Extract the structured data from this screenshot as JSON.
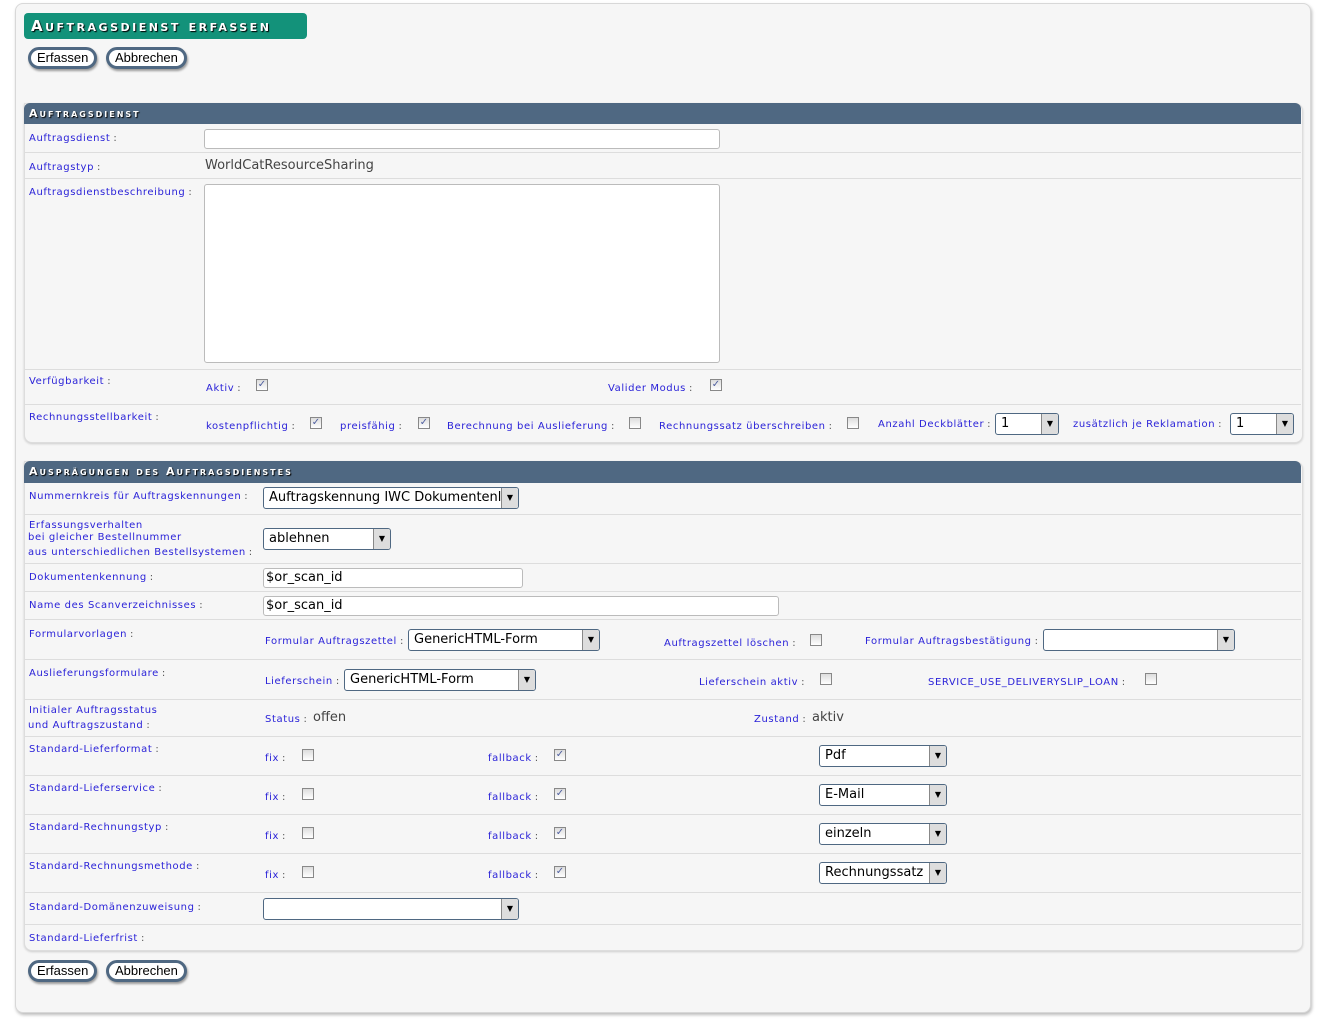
{
  "title": "Auftragsdienst erfassen",
  "buttons": {
    "submit": "Erfassen",
    "cancel": "Abbrechen"
  },
  "section1": {
    "header": "Auftragsdienst",
    "auftragsdienst": {
      "label": "Auftragsdienst",
      "value": ""
    },
    "auftragstyp": {
      "label": "Auftragstyp",
      "value": "WorldCatResourceSharing"
    },
    "beschreibung": {
      "label": "Auftragsdienstbeschreibung",
      "value": ""
    },
    "verfuegbarkeit": {
      "label": "Verfügbarkeit",
      "aktiv": {
        "label": "Aktiv",
        "checked": true
      },
      "valider_modus": {
        "label": "Valider Modus",
        "checked": true
      }
    },
    "rechnung": {
      "label": "Rechnungsstellbarkeit",
      "kostenpflichtig": {
        "label": "kostenpflichtig",
        "checked": true
      },
      "preisfaehig": {
        "label": "preisfähig",
        "checked": true
      },
      "berechnung": {
        "label": "Berechnung bei Auslieferung",
        "checked": false
      },
      "rechnungssatz": {
        "label": "Rechnungssatz überschreiben",
        "checked": false
      },
      "deckblaetter": {
        "label": "Anzahl Deckblätter",
        "value": "1"
      },
      "reklamation": {
        "label": "zusätzlich je Reklamation",
        "value": "1"
      }
    }
  },
  "section2": {
    "header": "Ausprägungen des Auftragsdienstes",
    "nummernkreis": {
      "label": "Nummernkreis für Auftragskennungen",
      "value": "Auftragskennung IWC Dokumentenl"
    },
    "erfassung": {
      "label1": "Erfassungsverhalten",
      "label2": "bei gleicher Bestellnummer",
      "label3": "aus unterschiedlichen Bestellsystemen",
      "value": "ablehnen"
    },
    "dokumentenkennung": {
      "label": "Dokumentenkennung",
      "value": "$or_scan_id"
    },
    "scanverzeichnis": {
      "label": "Name des Scanverzeichnisses",
      "value": "$or_scan_id"
    },
    "formularvorlagen": {
      "label": "Formularvorlagen",
      "auftragszettel": {
        "label": "Formular Auftragszettel",
        "value": "GenericHTML-Form"
      },
      "loeschen": {
        "label": "Auftragszettel löschen",
        "checked": false
      },
      "bestaetigung": {
        "label": "Formular Auftragsbestätigung",
        "value": ""
      }
    },
    "auslieferung": {
      "label": "Auslieferungsformulare",
      "lieferschein": {
        "label": "Lieferschein",
        "value": "GenericHTML-Form"
      },
      "aktiv": {
        "label": "Lieferschein aktiv",
        "checked": false
      },
      "loan": {
        "label": "SERVICE_USE_DELIVERYSLIP_LOAN",
        "checked": false
      }
    },
    "initial": {
      "label1": "Initialer Auftragsstatus",
      "label2": "und Auftragszustand",
      "status_label": "Status",
      "status": "offen",
      "zustand_label": "Zustand",
      "zustand": "aktiv"
    },
    "fix_label": "fix",
    "fallback_label": "fallback",
    "defaults": [
      {
        "label": "Standard-Lieferformat",
        "fix": false,
        "fallback": true,
        "value": "Pdf"
      },
      {
        "label": "Standard-Lieferservice",
        "fix": false,
        "fallback": true,
        "value": "E-Mail"
      },
      {
        "label": "Standard-Rechnungstyp",
        "fix": false,
        "fallback": true,
        "value": "einzeln"
      },
      {
        "label": "Standard-Rechnungsmethode",
        "fix": false,
        "fallback": true,
        "value": "Rechnungssatz"
      }
    ],
    "domaene": {
      "label": "Standard-Domänenzuweisung",
      "value": ""
    },
    "lieferfrist": {
      "label": "Standard-Lieferfrist"
    }
  }
}
